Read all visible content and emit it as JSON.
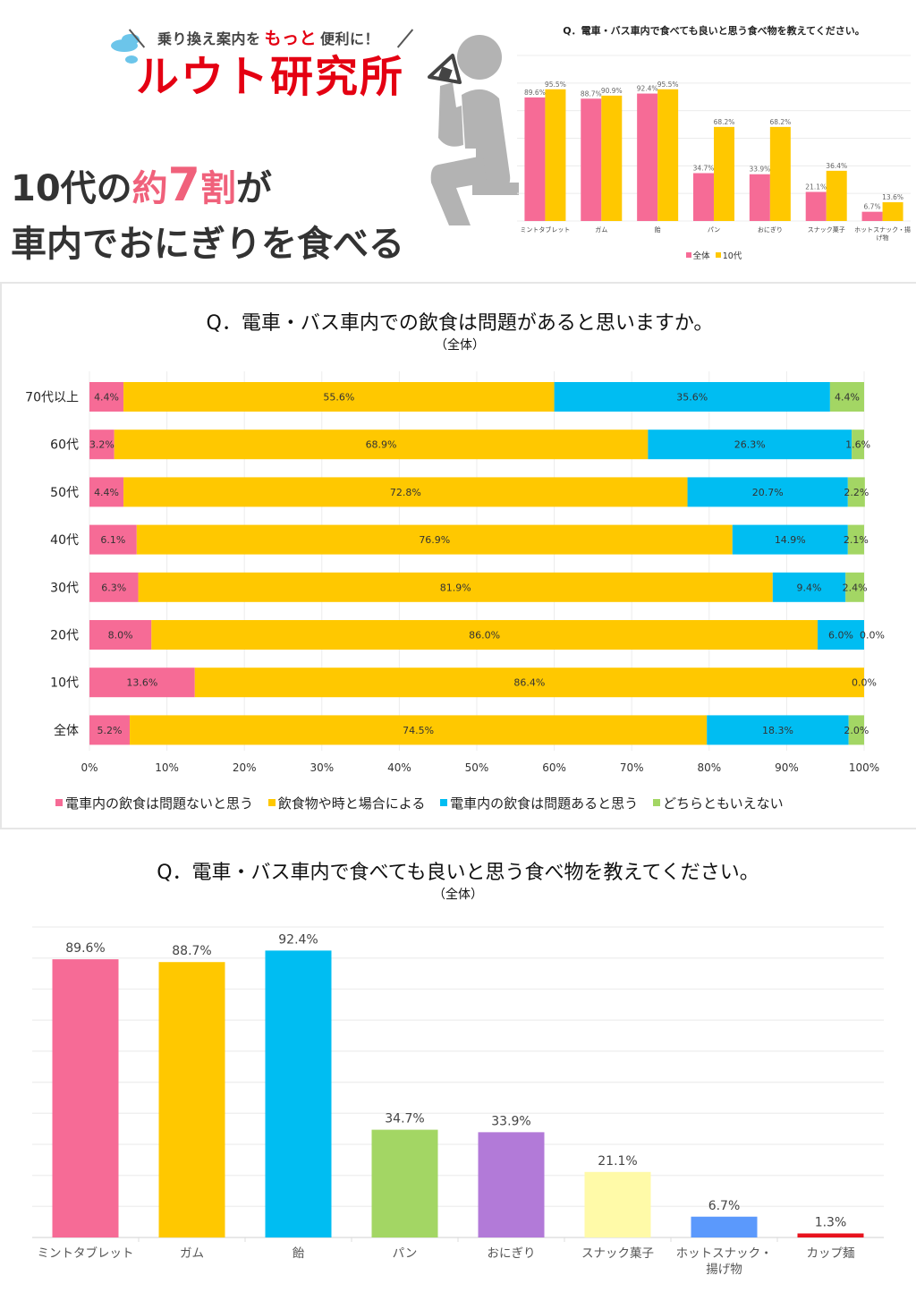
{
  "logo": {
    "tagline_before": "乗り換え案内を",
    "tagline_emph": "もっと",
    "tagline_after": "便利に！",
    "name": "ルウト研究所"
  },
  "headline": {
    "line1_a": "10代の",
    "line1_b": "約",
    "line1_c": "7",
    "line1_d": "割",
    "line1_e": "が",
    "line2": "車内でおにぎりを食べる"
  },
  "colors": {
    "pink": "#f66b96",
    "yellow": "#ffc800",
    "blue": "#00bdf2",
    "green": "#a3d664",
    "purple": "#b27ad8",
    "cream": "#fffaa8",
    "periwinkle": "#5b99fc",
    "red": "#e8131e",
    "grid": "#ececec",
    "figure_gray": "#b3b3b3"
  },
  "chart_data": [
    {
      "type": "bar",
      "title": "Q．電車・バス車内で食べても良いと思う食べ物を教えてください。",
      "categories": [
        "ミントタブレット",
        "ガム",
        "飴",
        "パン",
        "おにぎり",
        "スナック菓子",
        "ホットスナック・揚げ物"
      ],
      "series": [
        {
          "name": "全体",
          "values": [
            89.6,
            88.7,
            92.4,
            34.7,
            33.9,
            21.1,
            6.7
          ],
          "labels": [
            "89.6%",
            "88.7%",
            "92.4%",
            "34.7%",
            "33.9%",
            "21.1%",
            "6.7%"
          ]
        },
        {
          "name": "10代",
          "values": [
            95.5,
            90.9,
            95.5,
            68.2,
            68.2,
            36.4,
            13.6
          ],
          "labels": [
            "95.5%",
            "90.9%",
            "95.5%",
            "68.2%",
            "68.2%",
            "36.4%",
            "13.6%"
          ]
        }
      ],
      "ylim": [
        0,
        120
      ],
      "grid": true,
      "legend": "bottom"
    },
    {
      "type": "bar",
      "orientation": "horizontal-stacked",
      "title": "Q．電車・バス車内での飲食は問題があると思いますか。",
      "subtitle": "（全体）",
      "categories": [
        "70代以上",
        "60代",
        "50代",
        "40代",
        "30代",
        "20代",
        "10代",
        "全体"
      ],
      "series": [
        {
          "name": "電車内の飲食は問題ないと思う",
          "values": [
            4.4,
            3.2,
            4.4,
            6.1,
            6.3,
            8.0,
            13.6,
            5.2
          ],
          "labels": [
            "4.4%",
            "3.2%",
            "4.4%",
            "6.1%",
            "6.3%",
            "8.0%",
            "13.6%",
            "5.2%"
          ]
        },
        {
          "name": "飲食物や時と場合による",
          "values": [
            55.6,
            68.9,
            72.8,
            76.9,
            81.9,
            86.0,
            86.4,
            74.5
          ],
          "labels": [
            "55.6%",
            "68.9%",
            "72.8%",
            "76.9%",
            "81.9%",
            "86.0%",
            "86.4%",
            "74.5%"
          ]
        },
        {
          "name": "電車内の飲食は問題あると思う",
          "values": [
            35.6,
            26.3,
            20.7,
            14.9,
            9.4,
            6.0,
            0.0,
            18.3
          ],
          "labels": [
            "35.6%",
            "26.3%",
            "20.7%",
            "14.9%",
            "9.4%",
            "6.0%",
            "",
            "18.3%"
          ]
        },
        {
          "name": "どちらともいえない",
          "values": [
            4.4,
            1.6,
            2.2,
            2.1,
            2.4,
            0.0,
            0.0,
            2.0
          ],
          "labels": [
            "4.4%",
            "1.6%",
            "2.2%",
            "2.1%",
            "2.4%",
            "0.0%",
            "0.0%",
            "2.0%"
          ]
        }
      ],
      "xticks": [
        "0%",
        "10%",
        "20%",
        "30%",
        "40%",
        "50%",
        "60%",
        "70%",
        "80%",
        "90%",
        "100%"
      ],
      "xlim": [
        0,
        100
      ],
      "grid": true,
      "legend": "bottom"
    },
    {
      "type": "bar",
      "title": "Q．電車・バス車内で食べても良いと思う食べ物を教えてください。",
      "subtitle": "（全体）",
      "categories": [
        "ミントタブレット",
        "ガム",
        "飴",
        "パン",
        "おにぎり",
        "スナック菓子",
        "ホットスナック・揚げ物",
        "カップ麺"
      ],
      "category_lines": [
        [
          "ミントタブレット"
        ],
        [
          "ガム"
        ],
        [
          "飴"
        ],
        [
          "パン"
        ],
        [
          "おにぎり"
        ],
        [
          "スナック菓子"
        ],
        [
          "ホットスナック・",
          "揚げ物"
        ],
        [
          "カップ麺"
        ]
      ],
      "values": [
        89.6,
        88.7,
        92.4,
        34.7,
        33.9,
        21.1,
        6.7,
        1.3
      ],
      "labels": [
        "89.6%",
        "88.7%",
        "92.4%",
        "34.7%",
        "33.9%",
        "21.1%",
        "6.7%",
        "1.3%"
      ],
      "bar_colors": [
        "#f66b96",
        "#ffc800",
        "#00bdf2",
        "#a3d664",
        "#b27ad8",
        "#fffaa8",
        "#5b99fc",
        "#e8131e"
      ],
      "ylim": [
        0,
        100
      ],
      "grid": true
    }
  ]
}
